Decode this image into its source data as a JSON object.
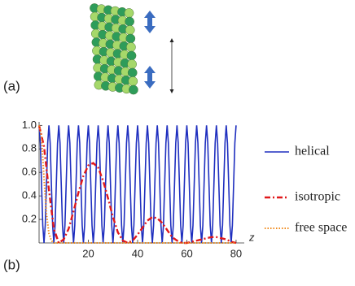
{
  "panel_labels": [
    "(a)",
    "(b)"
  ],
  "chart_data": {
    "type": "line",
    "x_label": "z",
    "xlim": [
      0,
      82
    ],
    "xticks": [
      20,
      40,
      60,
      80
    ],
    "ylim": [
      0,
      1.03
    ],
    "yticks": [
      0.2,
      0.4,
      0.6,
      0.8,
      {
        "value": 1,
        "label": "1.0"
      }
    ],
    "legend": "right",
    "series": [
      {
        "name": "helical",
        "color": "#1f2fbf",
        "style": "solid",
        "x": [
          0,
          0.5,
          1,
          1.5,
          2,
          2.5,
          3,
          3.5,
          4,
          4.5,
          5,
          5.5,
          6,
          6.5,
          7,
          7.5,
          8,
          8.5,
          9,
          9.5,
          10,
          10.5,
          11,
          11.5,
          12,
          12.5,
          13,
          13.5,
          14,
          14.5,
          15,
          15.5,
          16,
          16.5,
          17,
          17.5,
          18,
          18.5,
          19,
          19.5,
          20,
          20.5,
          21,
          21.5,
          22,
          22.5,
          23,
          23.5,
          24,
          24.5,
          25,
          25.5,
          26,
          26.5,
          27,
          27.5,
          28,
          28.5,
          29,
          29.5,
          30,
          30.5,
          31,
          31.5,
          32,
          32.5,
          33,
          33.5,
          34,
          34.5,
          35,
          35.5,
          36,
          36.5,
          37,
          37.5,
          38,
          38.5,
          39,
          39.5,
          40,
          40.5,
          41,
          41.5,
          42,
          42.5,
          43,
          43.5,
          44,
          44.5,
          45,
          45.5,
          46,
          46.5,
          47,
          47.5,
          48,
          48.5,
          49,
          49.5,
          50,
          50.5,
          51,
          51.5,
          52,
          52.5,
          53,
          53.5,
          54,
          54.5,
          55,
          55.5,
          56,
          56.5,
          57,
          57.5,
          58,
          58.5,
          59,
          59.5,
          60,
          60.5,
          61,
          61.5,
          62,
          62.5,
          63,
          63.5,
          64,
          64.5,
          65,
          65.5,
          66,
          66.5,
          67,
          67.5,
          68,
          68.5,
          69,
          69.5,
          70,
          70.5,
          71,
          71.5,
          72,
          72.5,
          73,
          73.5,
          74,
          74.5,
          75,
          75.5,
          76,
          76.5,
          77,
          77.5,
          78,
          78.5,
          79,
          79.5,
          80
        ],
        "values": [
          1,
          0.85,
          0.5,
          0.15,
          0,
          0.15,
          0.5,
          0.85,
          1,
          0.85,
          0.5,
          0.15,
          0,
          0.15,
          0.5,
          0.85,
          1,
          0.85,
          0.5,
          0.15,
          0,
          0.15,
          0.5,
          0.85,
          1,
          0.85,
          0.5,
          0.15,
          0,
          0.15,
          0.5,
          0.85,
          1,
          0.85,
          0.5,
          0.15,
          0,
          0.15,
          0.5,
          0.85,
          1,
          0.85,
          0.5,
          0.15,
          0,
          0.15,
          0.5,
          0.85,
          1,
          0.85,
          0.5,
          0.15,
          0,
          0.15,
          0.5,
          0.85,
          1,
          0.85,
          0.5,
          0.15,
          0,
          0.15,
          0.5,
          0.85,
          1,
          0.85,
          0.5,
          0.15,
          0,
          0.15,
          0.5,
          0.85,
          1,
          0.85,
          0.5,
          0.15,
          0,
          0.15,
          0.5,
          0.85,
          1,
          0.85,
          0.5,
          0.15,
          0,
          0.15,
          0.5,
          0.85,
          1,
          0.85,
          0.5,
          0.15,
          0,
          0.15,
          0.5,
          0.85,
          1,
          0.85,
          0.5,
          0.15,
          0,
          0.15,
          0.5,
          0.85,
          1,
          0.85,
          0.5,
          0.15,
          0,
          0.15,
          0.5,
          0.85,
          1,
          0.85,
          0.5,
          0.15,
          0,
          0.15,
          0.5,
          0.85,
          1,
          0.85,
          0.5,
          0.15,
          0,
          0.15,
          0.5,
          0.85,
          1,
          0.85,
          0.5,
          0.15,
          0,
          0.15,
          0.5,
          0.85,
          1,
          0.85,
          0.5,
          0.15,
          0,
          0.15,
          0.5,
          0.85,
          1,
          0.85,
          0.5,
          0.15,
          0,
          0.15,
          0.5,
          0.85,
          1,
          0.85,
          0.5,
          0.15,
          0,
          0.15,
          0.5,
          0.85,
          1
        ]
      },
      {
        "name": "isotropic",
        "color": "#e0181b",
        "style": "dashdot",
        "x": [
          0,
          2,
          4,
          6,
          8,
          10,
          12,
          14,
          16,
          18,
          20,
          22,
          24,
          26,
          28,
          30,
          32,
          34,
          36,
          38,
          40,
          42,
          44,
          46,
          48,
          50,
          52,
          54,
          56,
          58,
          60,
          62,
          64,
          66,
          68,
          70,
          72,
          74,
          76,
          78,
          80
        ],
        "values": [
          1,
          0.82,
          0.45,
          0.12,
          0,
          0.03,
          0.12,
          0.27,
          0.43,
          0.57,
          0.66,
          0.68,
          0.64,
          0.53,
          0.38,
          0.22,
          0.09,
          0.02,
          0,
          0.02,
          0.07,
          0.13,
          0.19,
          0.22,
          0.21,
          0.17,
          0.11,
          0.05,
          0.02,
          0,
          0,
          0.01,
          0.02,
          0.03,
          0.04,
          0.05,
          0.05,
          0.04,
          0.03,
          0.01,
          0
        ]
      },
      {
        "name": "free space",
        "color": "#f08a1c",
        "style": "dotted",
        "x": [
          0,
          1,
          2,
          3,
          4,
          5,
          6,
          8,
          80
        ],
        "values": [
          1,
          0.9,
          0.55,
          0.25,
          0.08,
          0.02,
          0,
          0,
          0
        ]
      }
    ]
  }
}
